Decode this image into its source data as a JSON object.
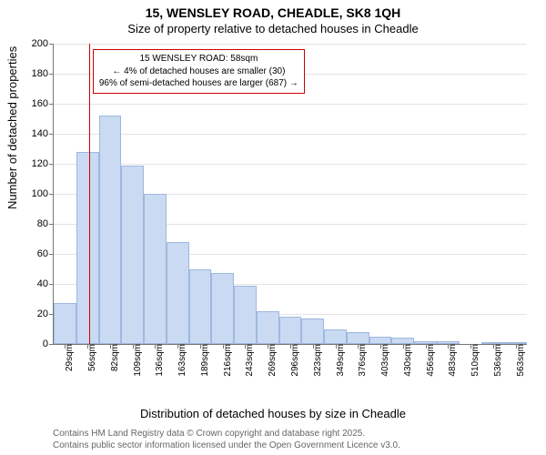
{
  "chart": {
    "type": "histogram",
    "title": "15, WENSLEY ROAD, CHEADLE, SK8 1QH",
    "subtitle": "Size of property relative to detached houses in Cheadle",
    "ylabel": "Number of detached properties",
    "xlabel": "Distribution of detached houses by size in Cheadle",
    "ylim": [
      0,
      200
    ],
    "ytick_step": 20,
    "grid_color": "#e4e4e4",
    "background_color": "#ffffff",
    "axis_color": "#777777",
    "bar_fill": "#c9daf2",
    "bar_border": "#9fb8de",
    "bar_width_ratio": 1.0,
    "categories": [
      "29sqm",
      "56sqm",
      "82sqm",
      "109sqm",
      "136sqm",
      "163sqm",
      "189sqm",
      "216sqm",
      "243sqm",
      "269sqm",
      "296sqm",
      "323sqm",
      "349sqm",
      "376sqm",
      "403sqm",
      "430sqm",
      "456sqm",
      "483sqm",
      "510sqm",
      "536sqm",
      "563sqm"
    ],
    "values": [
      27,
      128,
      152,
      119,
      100,
      68,
      50,
      47,
      39,
      22,
      18,
      17,
      10,
      8,
      5,
      4,
      2,
      2,
      0,
      1,
      1
    ],
    "marker": {
      "label_line1": "15 WENSLEY ROAD: 58sqm",
      "label_line2": "← 4% of detached houses are smaller (30)",
      "label_line3": "96% of semi-detached houses are larger (687) →",
      "position_index": 1.07,
      "line_color": "#cc0000",
      "box_border": "#cc0000",
      "box_background": "#ffffff"
    },
    "title_fontsize": 14,
    "subtitle_fontsize": 13,
    "label_fontsize": 13,
    "tick_fontsize": 11,
    "xtick_fontsize": 10
  },
  "footer": {
    "line1": "Contains HM Land Registry data © Crown copyright and database right 2025.",
    "line2": "Contains public sector information licensed under the Open Government Licence v3.0."
  }
}
